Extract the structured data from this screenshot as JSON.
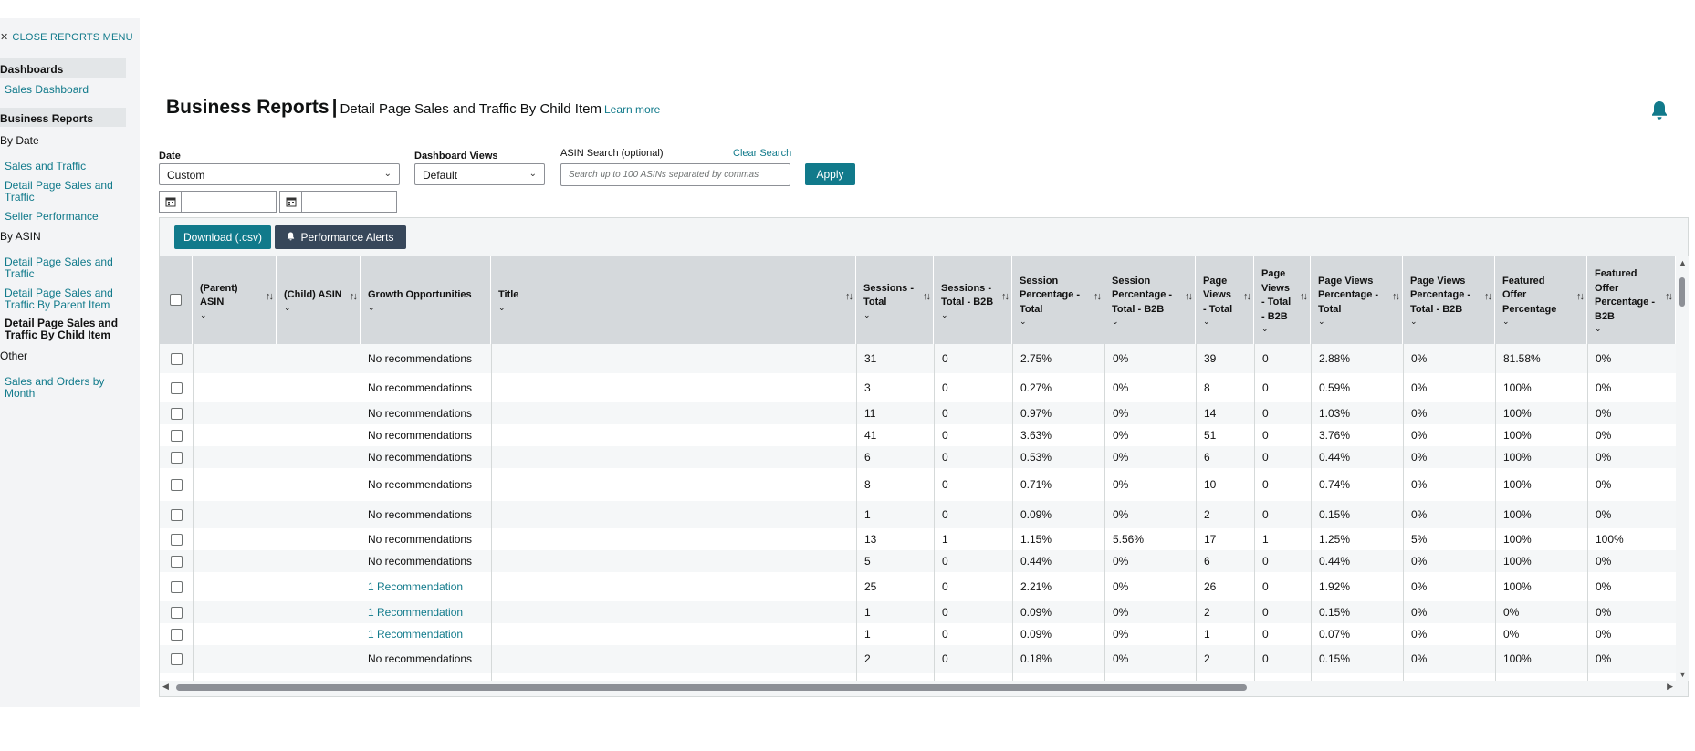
{
  "sidebar": {
    "close_menu": "CLOSE REPORTS MENU",
    "dashboards_head": "Dashboards",
    "sales_dashboard": "Sales Dashboard",
    "business_reports_head": "Business Reports",
    "by_date": "By Date",
    "by_date_items": [
      "Sales and Traffic",
      "Detail Page Sales and Traffic",
      "Seller Performance"
    ],
    "by_asin": "By ASIN",
    "by_asin_items": [
      "Detail Page Sales and Traffic",
      "Detail Page Sales and Traffic By Parent Item",
      "Detail Page Sales and Traffic By Child Item"
    ],
    "other": "Other",
    "other_items": [
      "Sales and Orders by Month"
    ]
  },
  "header": {
    "title": "Business Reports",
    "separator": "|",
    "subtitle": "Detail Page Sales and Traffic By Child Item",
    "learn_more": "Learn more"
  },
  "filters": {
    "date_label": "Date",
    "date_value": "Custom",
    "dashboard_views_label": "Dashboard Views",
    "dashboard_views_value": "Default",
    "asin_search_label": "ASIN Search (optional)",
    "clear_search": "Clear Search",
    "asin_placeholder": "Search up to 100 ASINs separated by commas",
    "apply": "Apply"
  },
  "toolbar": {
    "download": "Download (.csv)",
    "alerts": "Performance Alerts"
  },
  "table": {
    "columns": [
      {
        "label": "(Parent) ASIN"
      },
      {
        "label": "(Child) ASIN"
      },
      {
        "label": "Growth Opportunities"
      },
      {
        "label": "Title"
      },
      {
        "label": "Sessions - Total"
      },
      {
        "label": "Sessions - Total - B2B"
      },
      {
        "label": "Session Percentage - Total"
      },
      {
        "label": "Session Percentage - Total - B2B"
      },
      {
        "label": "Page Views - Total"
      },
      {
        "label": "Page Views - Total - B2B"
      },
      {
        "label": "Page Views Percentage - Total"
      },
      {
        "label": "Page Views Percentage - Total - B2B"
      },
      {
        "label": "Featured Offer Percentage"
      },
      {
        "label": "Featured Offer Percentage - B2B"
      }
    ],
    "rows": [
      {
        "growth": "No recommendations",
        "link": false,
        "vals": [
          "31",
          "0",
          "2.75%",
          "0%",
          "39",
          "0",
          "2.88%",
          "0%",
          "81.58%",
          "0%"
        ]
      },
      {
        "growth": "No recommendations",
        "link": false,
        "vals": [
          "3",
          "0",
          "0.27%",
          "0%",
          "8",
          "0",
          "0.59%",
          "0%",
          "100%",
          "0%"
        ]
      },
      {
        "growth": "No recommendations",
        "link": false,
        "vals": [
          "11",
          "0",
          "0.97%",
          "0%",
          "14",
          "0",
          "1.03%",
          "0%",
          "100%",
          "0%"
        ]
      },
      {
        "growth": "No recommendations",
        "link": false,
        "vals": [
          "41",
          "0",
          "3.63%",
          "0%",
          "51",
          "0",
          "3.76%",
          "0%",
          "100%",
          "0%"
        ]
      },
      {
        "growth": "No recommendations",
        "link": false,
        "vals": [
          "6",
          "0",
          "0.53%",
          "0%",
          "6",
          "0",
          "0.44%",
          "0%",
          "100%",
          "0%"
        ]
      },
      {
        "growth": "No recommendations",
        "link": false,
        "vals": [
          "8",
          "0",
          "0.71%",
          "0%",
          "10",
          "0",
          "0.74%",
          "0%",
          "100%",
          "0%"
        ]
      },
      {
        "growth": "No recommendations",
        "link": false,
        "vals": [
          "1",
          "0",
          "0.09%",
          "0%",
          "2",
          "0",
          "0.15%",
          "0%",
          "100%",
          "0%"
        ]
      },
      {
        "growth": "No recommendations",
        "link": false,
        "vals": [
          "13",
          "1",
          "1.15%",
          "5.56%",
          "17",
          "1",
          "1.25%",
          "5%",
          "100%",
          "100%"
        ]
      },
      {
        "growth": "No recommendations",
        "link": false,
        "vals": [
          "5",
          "0",
          "0.44%",
          "0%",
          "6",
          "0",
          "0.44%",
          "0%",
          "100%",
          "0%"
        ]
      },
      {
        "growth": "1 Recommendation",
        "link": true,
        "vals": [
          "25",
          "0",
          "2.21%",
          "0%",
          "26",
          "0",
          "1.92%",
          "0%",
          "100%",
          "0%"
        ]
      },
      {
        "growth": "1 Recommendation",
        "link": true,
        "vals": [
          "1",
          "0",
          "0.09%",
          "0%",
          "2",
          "0",
          "0.15%",
          "0%",
          "0%",
          "0%"
        ]
      },
      {
        "growth": "1 Recommendation",
        "link": true,
        "vals": [
          "1",
          "0",
          "0.09%",
          "0%",
          "1",
          "0",
          "0.07%",
          "0%",
          "0%",
          "0%"
        ]
      },
      {
        "growth": "No recommendations",
        "link": false,
        "vals": [
          "2",
          "0",
          "0.18%",
          "0%",
          "2",
          "0",
          "0.15%",
          "0%",
          "100%",
          "0%"
        ]
      }
    ]
  },
  "colors": {
    "accent": "#117a8b",
    "dark_button": "#37475a",
    "header_bg": "#d5d9dc"
  }
}
